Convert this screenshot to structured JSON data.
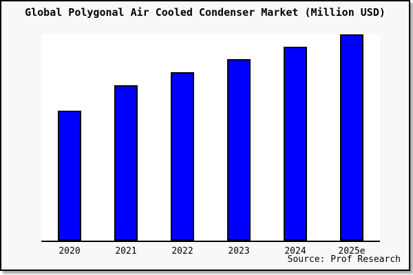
{
  "title": "Global Polygonal Air Cooled Condenser Market (Million USD)",
  "source": "Source: Prof Research",
  "colors": {
    "bar_fill": "#0000FF",
    "bar_border": "#000000",
    "panel_background": "#F8F8F8",
    "plot_background": "#FFFFFF",
    "axis": "#000000"
  },
  "chart_data": {
    "type": "bar",
    "title": "Global Polygonal Air Cooled Condenser Market (Million USD)",
    "categories": [
      "2020",
      "2021",
      "2022",
      "2023",
      "2024",
      "2025e"
    ],
    "values": [
      63,
      75.3,
      81.7,
      88,
      94,
      100
    ],
    "value_note": "No y-axis ticks or data labels are shown; values are bar heights as percent of the tallest (2025e) bar",
    "xlabel": "",
    "ylabel": "",
    "ylim": [
      0,
      100
    ],
    "grid": false,
    "legend": false,
    "source": "Source: Prof Research"
  }
}
